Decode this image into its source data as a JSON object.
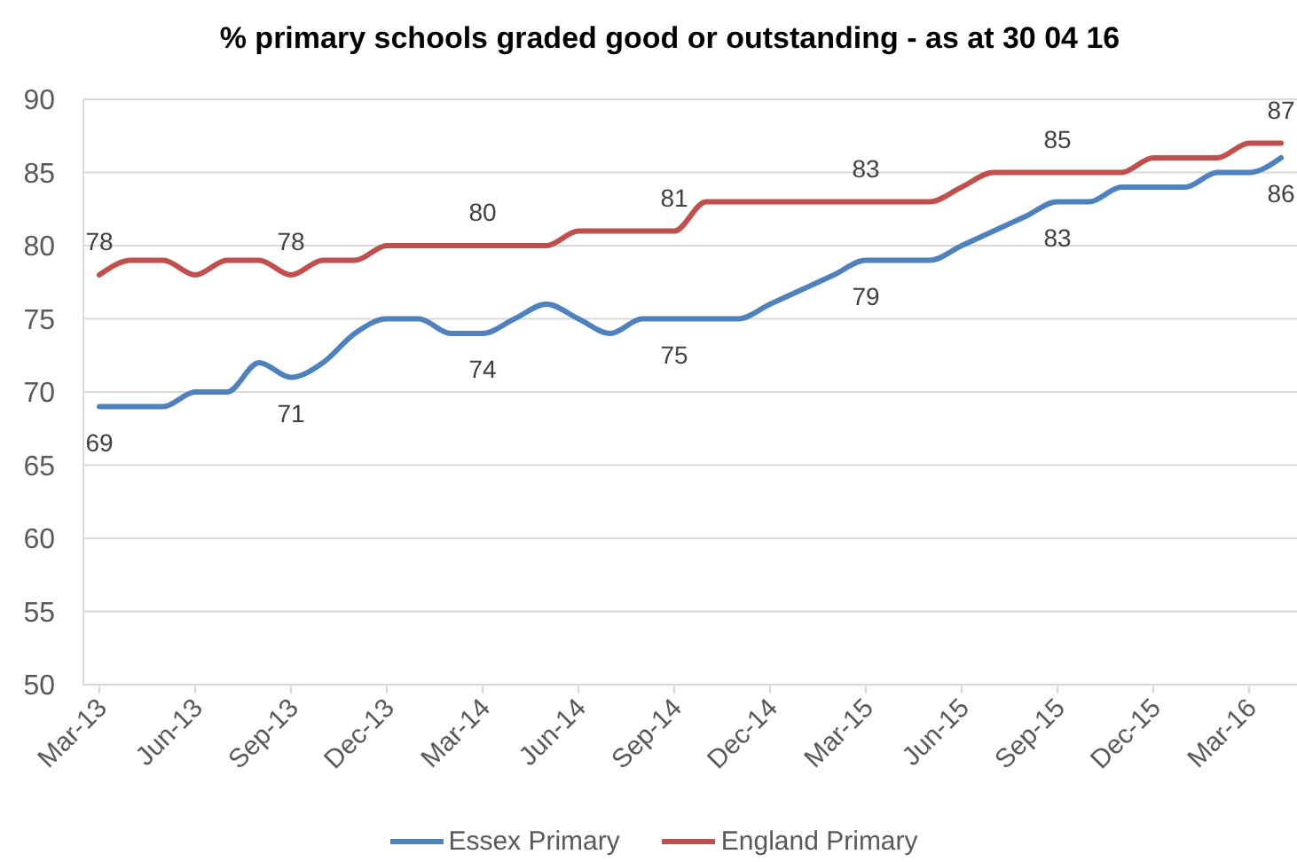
{
  "chart_data": {
    "type": "line",
    "title": "% primary schools graded good or outstanding - as at 30 04 16",
    "categories": [
      "Mar-13",
      null,
      null,
      "Jun-13",
      null,
      null,
      "Sep-13",
      null,
      null,
      "Dec-13",
      null,
      null,
      "Mar-14",
      null,
      null,
      "Jun-14",
      null,
      null,
      "Sep-14",
      null,
      null,
      "Dec-14",
      null,
      null,
      "Mar-15",
      null,
      null,
      "Jun-15",
      null,
      null,
      "Sep-15",
      null,
      null,
      "Dec-15",
      null,
      null,
      "Mar-16",
      null
    ],
    "series": [
      {
        "name": "Essex Primary",
        "color": "#4f81bd",
        "values": [
          69,
          69,
          69,
          70,
          70,
          72,
          71,
          72,
          74,
          75,
          75,
          74,
          74,
          75,
          76,
          75,
          74,
          75,
          75,
          75,
          75,
          76,
          77,
          78,
          79,
          79,
          79,
          80,
          81,
          82,
          83,
          83,
          84,
          84,
          84,
          85,
          85,
          86
        ],
        "value_labels": [
          "69",
          null,
          null,
          null,
          null,
          null,
          "71",
          null,
          null,
          null,
          null,
          null,
          "74",
          null,
          null,
          null,
          null,
          null,
          "75",
          null,
          null,
          null,
          null,
          null,
          "79",
          null,
          null,
          null,
          null,
          null,
          "83",
          null,
          null,
          null,
          null,
          null,
          null,
          "86"
        ]
      },
      {
        "name": "England Primary",
        "color": "#c0504d",
        "values": [
          78,
          79,
          79,
          78,
          79,
          79,
          78,
          79,
          79,
          80,
          80,
          80,
          80,
          80,
          80,
          81,
          81,
          81,
          81,
          83,
          83,
          83,
          83,
          83,
          83,
          83,
          83,
          84,
          85,
          85,
          85,
          85,
          85,
          86,
          86,
          86,
          87,
          87
        ],
        "value_labels": [
          "78",
          null,
          null,
          null,
          null,
          null,
          "78",
          null,
          null,
          null,
          null,
          null,
          "80",
          null,
          null,
          null,
          null,
          null,
          "81",
          null,
          null,
          null,
          null,
          null,
          "83",
          null,
          null,
          null,
          null,
          null,
          "85",
          null,
          null,
          null,
          null,
          null,
          null,
          "87"
        ]
      }
    ],
    "ylim": [
      50,
      90
    ],
    "yticks": [
      50,
      55,
      60,
      65,
      70,
      75,
      80,
      85,
      90
    ],
    "grid": "y",
    "legend": "bottom",
    "marker": "none",
    "line_style": "solid"
  }
}
